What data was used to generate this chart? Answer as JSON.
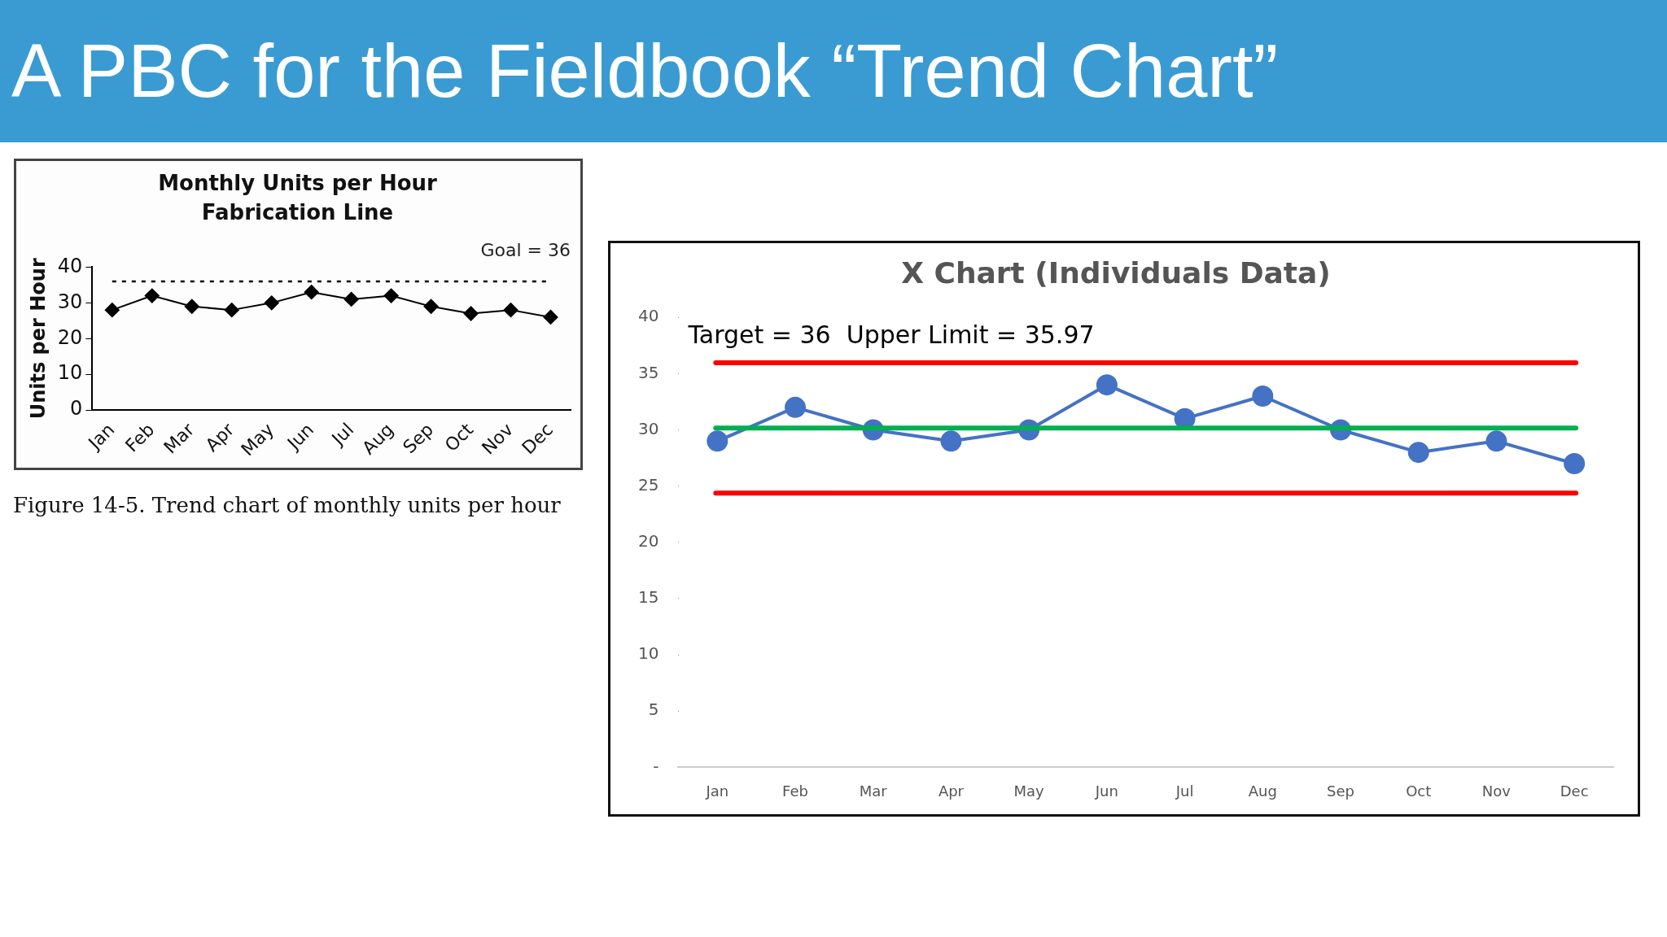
{
  "chart_data": [
    {
      "type": "line",
      "title": "Monthly Units per Hour",
      "subtitle": "Fabrication Line",
      "ylabel": "Units per Hour",
      "categories": [
        "Jan",
        "Feb",
        "Mar",
        "Apr",
        "May",
        "Jun",
        "Jul",
        "Aug",
        "Sep",
        "Oct",
        "Nov",
        "Dec"
      ],
      "values": [
        28,
        32,
        29,
        28,
        30,
        33,
        31,
        32,
        29,
        27,
        28,
        26
      ],
      "color": "#000000",
      "marker": "diamond",
      "line_style": "solid",
      "ylim": [
        0,
        40
      ],
      "yticks": [
        0,
        10,
        20,
        30,
        40
      ],
      "grid": false,
      "legend": false,
      "ref_lines": [
        {
          "axis": "y",
          "value": 36,
          "label": "Goal = 36",
          "color": "#000000",
          "line_style": "dotted"
        }
      ],
      "annotations": [
        "A PBC for the Fieldbook “Trend Chart”",
        "Figure 14-5. Trend chart of monthly units per hour"
      ]
    },
    {
      "type": "line",
      "title": "X Chart (Individuals Data)",
      "categories": [
        "Jan",
        "Feb",
        "Mar",
        "Apr",
        "May",
        "Jun",
        "Jul",
        "Aug",
        "Sep",
        "Oct",
        "Nov",
        "Dec"
      ],
      "values": [
        29,
        32,
        30,
        29,
        30,
        34,
        31,
        33,
        30,
        28,
        29,
        27
      ],
      "color": "#4472c4",
      "marker": "circle",
      "line_style": "solid",
      "ylim": [
        0,
        40
      ],
      "yticks": [
        {
          "value": 0,
          "label": "-"
        },
        5,
        10,
        15,
        20,
        25,
        30,
        35,
        40
      ],
      "grid": false,
      "legend": false,
      "ref_lines": [
        {
          "axis": "y",
          "value": 35.97,
          "color": "#ff0000",
          "line_style": "solid"
        },
        {
          "axis": "y",
          "value": 30.17,
          "color": "#00b050",
          "line_style": "solid"
        },
        {
          "axis": "y",
          "value": 24.37,
          "color": "#ff0000",
          "line_style": "solid"
        }
      ],
      "annotations": [
        "Target = 36  Upper Limit = 35.97"
      ]
    }
  ]
}
